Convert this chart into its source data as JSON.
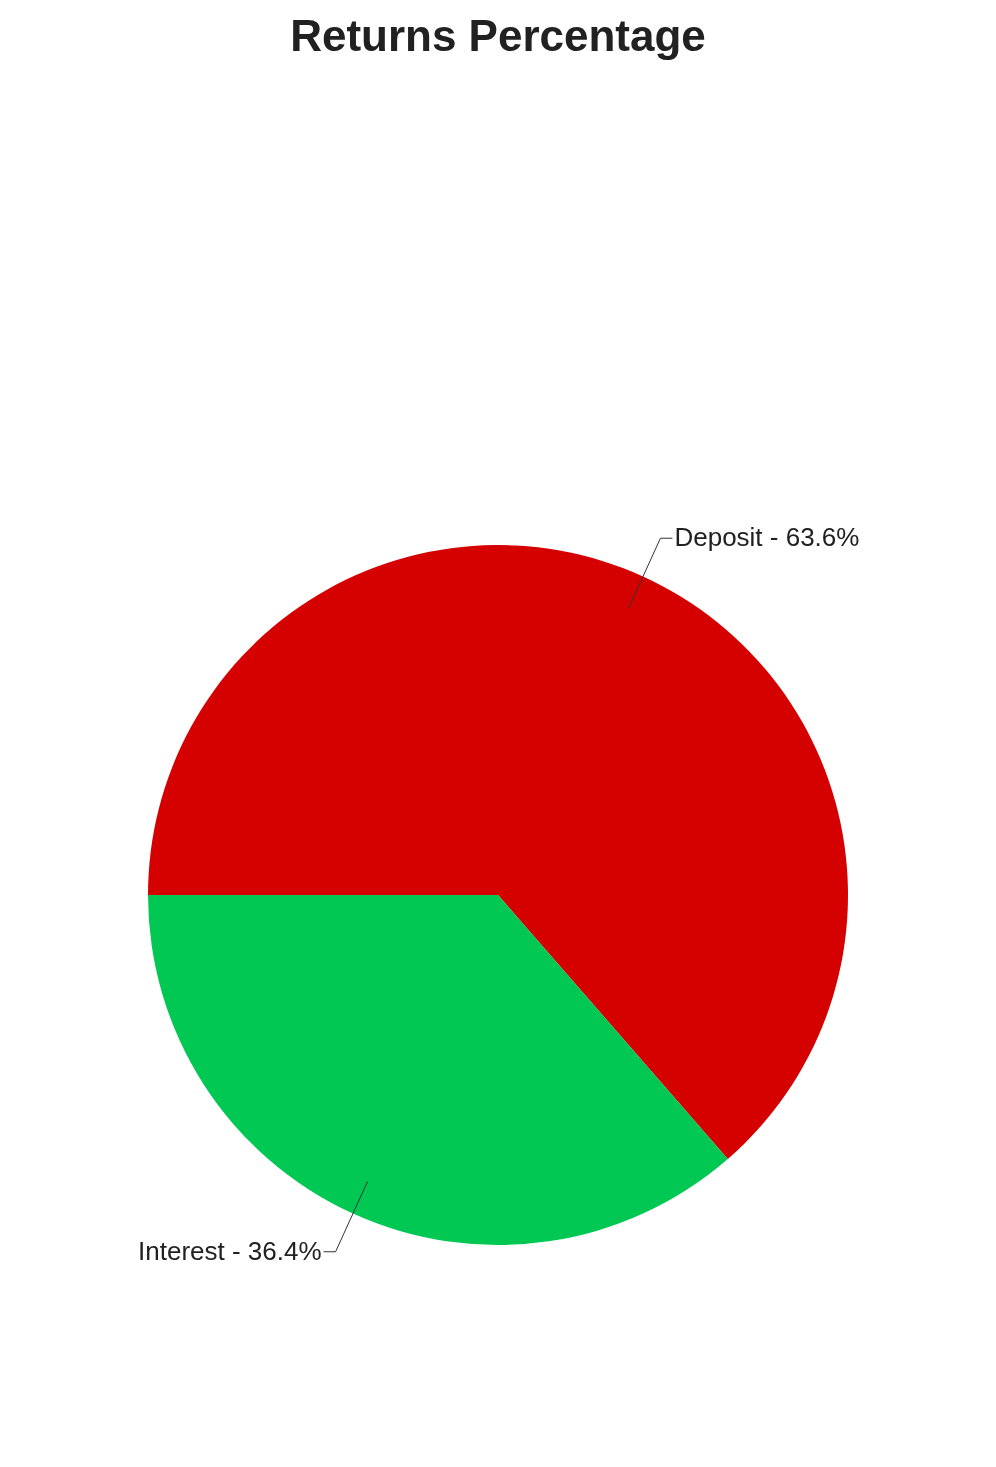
{
  "chart_data": {
    "type": "pie",
    "title": "Returns Percentage",
    "categories": [
      "Deposit",
      "Interest"
    ],
    "values": [
      63.6,
      36.4
    ],
    "colors": [
      "#d50000",
      "#00c853"
    ],
    "value_labels": [
      "63.6%",
      "36.4%"
    ],
    "legend": false
  }
}
